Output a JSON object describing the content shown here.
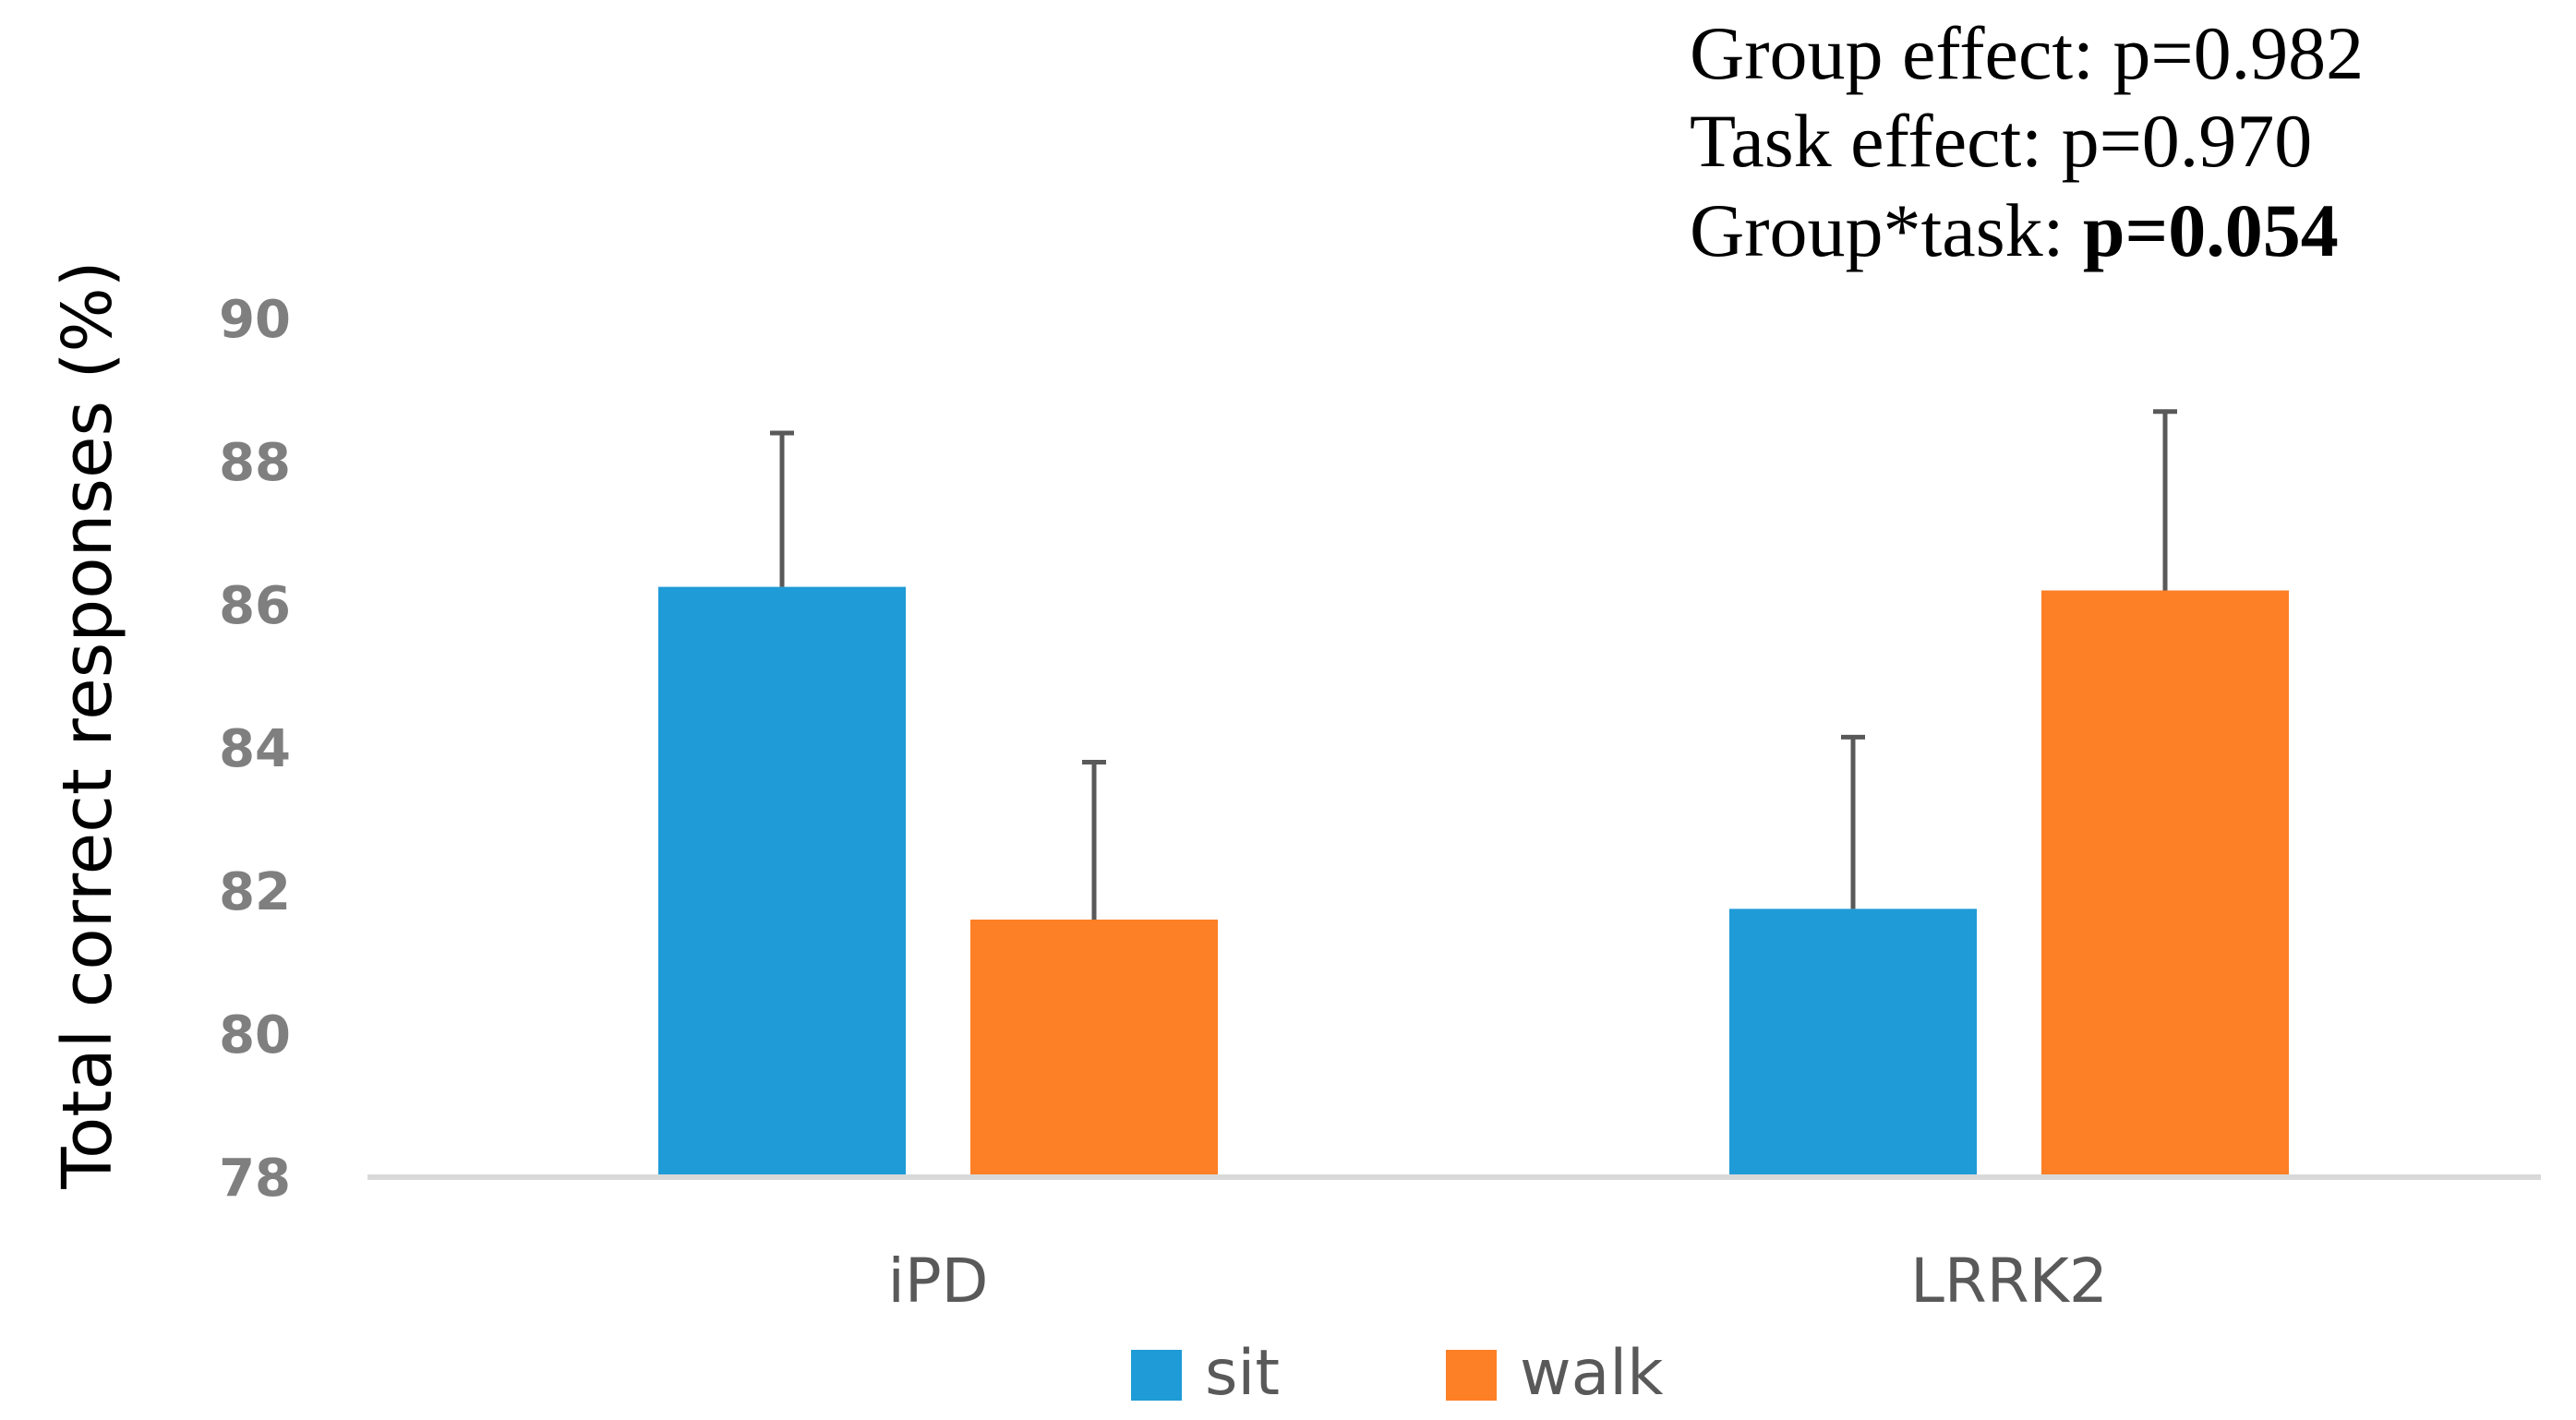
{
  "chart_data": {
    "type": "bar",
    "title": "",
    "xlabel": "",
    "ylabel": "Total correct responses (%)",
    "ylim": [
      78,
      90
    ],
    "yticks": [
      78,
      80,
      82,
      84,
      86,
      88,
      90
    ],
    "categories": [
      "iPD",
      "LRRK2"
    ],
    "series": [
      {
        "name": "sit",
        "color": "#1f9bd7",
        "values": [
          86.25,
          81.75
        ],
        "error_upper": [
          2.15,
          2.4
        ]
      },
      {
        "name": "walk",
        "color": "#fd7f26",
        "values": [
          81.6,
          86.2
        ],
        "error_upper": [
          2.2,
          2.5
        ]
      }
    ],
    "legend_position": "bottom",
    "grid": false,
    "annotations": [
      {
        "label": "Group effect: ",
        "value": "p=0.982",
        "bold": false
      },
      {
        "label": "Task effect: ",
        "value": "p=0.970",
        "bold": false
      },
      {
        "label": "Group*task: ",
        "value": "p=0.054",
        "bold": true
      }
    ]
  }
}
